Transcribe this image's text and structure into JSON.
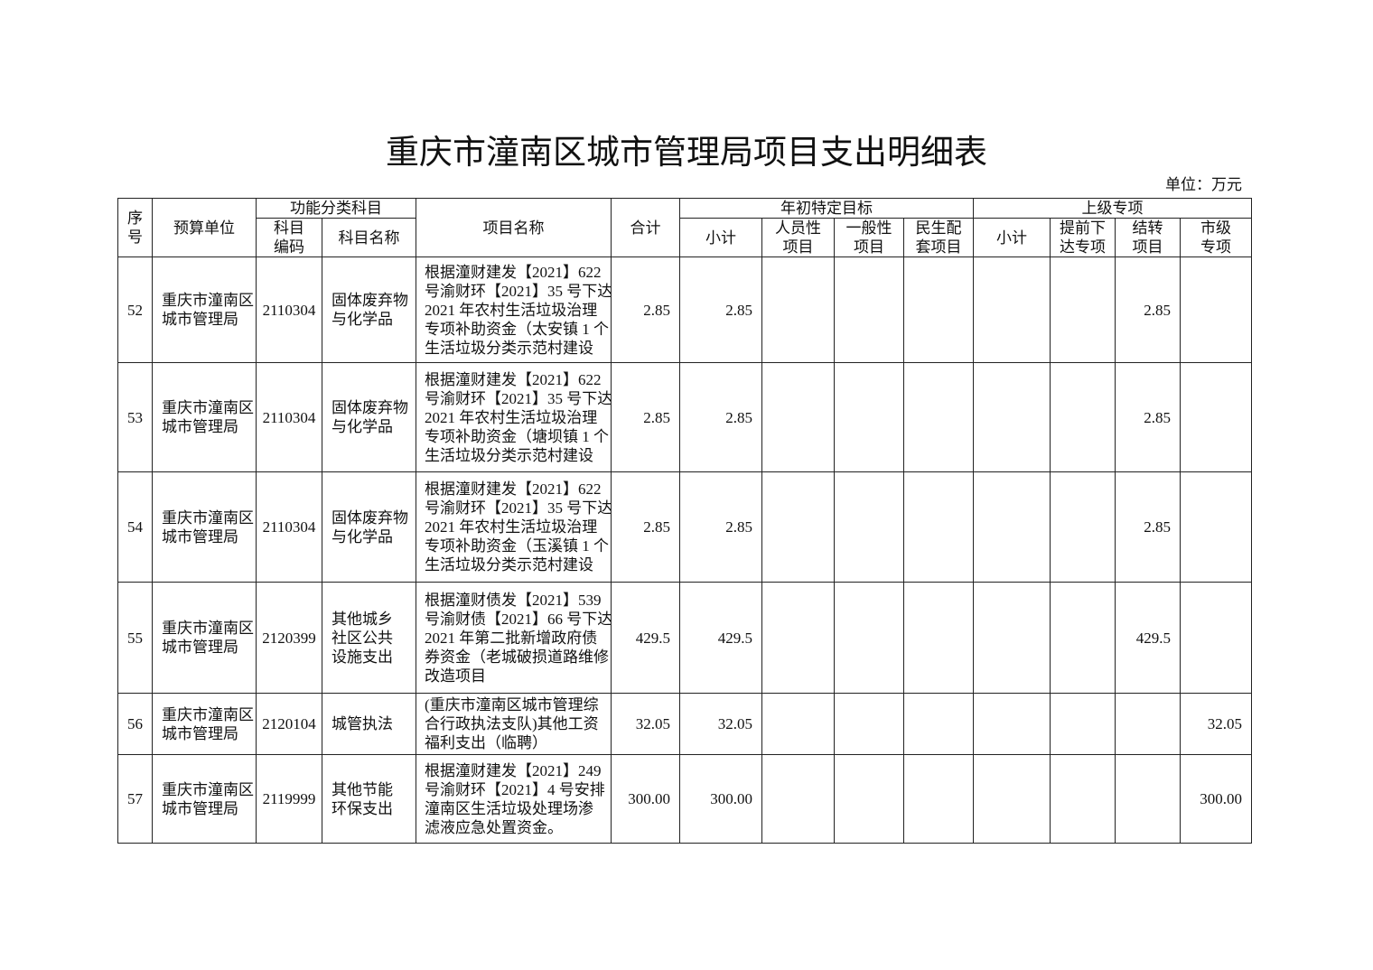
{
  "title": "重庆市潼南区城市管理局项目支出明细表",
  "unit": "单位：万元",
  "header": {
    "seq": [
      "序",
      "号"
    ],
    "unit": "预算单位",
    "func_group": "功能分类科目",
    "code": [
      "科目",
      "编码"
    ],
    "subject": "科目名称",
    "project": "项目名称",
    "total": "合计",
    "target_group": "年初特定目标",
    "target_sub": "小计",
    "personnel": [
      "人员性",
      "项目"
    ],
    "general": [
      "一般性",
      "项目"
    ],
    "livelihood": [
      "民生配",
      "套项目"
    ],
    "upper_group": "上级专项",
    "upper_sub": "小计",
    "advance": [
      "提前下",
      "达专项"
    ],
    "carryover": [
      "结转",
      "项目"
    ],
    "city": [
      "市级",
      "专项"
    ]
  },
  "rows": [
    {
      "seq": "52",
      "unit": [
        "重庆市潼南区",
        "城市管理局"
      ],
      "code": "2110304",
      "subject": [
        "固体废弃物",
        "与化学品"
      ],
      "project": [
        "根据潼财建发【2021】622",
        "号渝财环【2021】35 号下达",
        "2021 年农村生活垃圾治理",
        "专项补助资金（太安镇 1 个",
        "生活垃圾分类示范村建设"
      ],
      "total": "2.85",
      "target_sub": "2.85",
      "personnel": "",
      "general": "",
      "livelihood": "",
      "upper_sub": "",
      "advance": "",
      "carryover": "2.85",
      "city": ""
    },
    {
      "seq": "53",
      "unit": [
        "重庆市潼南区",
        "城市管理局"
      ],
      "code": "2110304",
      "subject": [
        "固体废弃物",
        "与化学品"
      ],
      "project": [
        "根据潼财建发【2021】622",
        "号渝财环【2021】35 号下达",
        "2021 年农村生活垃圾治理",
        "专项补助资金（塘坝镇 1 个",
        "生活垃圾分类示范村建设"
      ],
      "total": "2.85",
      "target_sub": "2.85",
      "personnel": "",
      "general": "",
      "livelihood": "",
      "upper_sub": "",
      "advance": "",
      "carryover": "2.85",
      "city": ""
    },
    {
      "seq": "54",
      "unit": [
        "重庆市潼南区",
        "城市管理局"
      ],
      "code": "2110304",
      "subject": [
        "固体废弃物",
        "与化学品"
      ],
      "project": [
        "根据潼财建发【2021】622",
        "号渝财环【2021】35 号下达",
        "2021 年农村生活垃圾治理",
        "专项补助资金（玉溪镇 1 个",
        "生活垃圾分类示范村建设"
      ],
      "total": "2.85",
      "target_sub": "2.85",
      "personnel": "",
      "general": "",
      "livelihood": "",
      "upper_sub": "",
      "advance": "",
      "carryover": "2.85",
      "city": ""
    },
    {
      "seq": "55",
      "unit": [
        "重庆市潼南区",
        "城市管理局"
      ],
      "code": "2120399",
      "subject": [
        "其他城乡",
        "社区公共",
        "设施支出"
      ],
      "project": [
        "根据潼财债发【2021】539",
        "号渝财债【2021】66 号下达",
        "2021 年第二批新增政府债",
        "券资金（老城破损道路维修",
        "改造项目"
      ],
      "total": "429.5",
      "target_sub": "429.5",
      "personnel": "",
      "general": "",
      "livelihood": "",
      "upper_sub": "",
      "advance": "",
      "carryover": "429.5",
      "city": ""
    },
    {
      "seq": "56",
      "unit": [
        "重庆市潼南区",
        "城市管理局"
      ],
      "code": "2120104",
      "subject": [
        "城管执法"
      ],
      "project": [
        "(重庆市潼南区城市管理综",
        "合行政执法支队)其他工资",
        "福利支出（临聘）"
      ],
      "total": "32.05",
      "target_sub": "32.05",
      "personnel": "",
      "general": "",
      "livelihood": "",
      "upper_sub": "",
      "advance": "",
      "carryover": "",
      "city": "32.05"
    },
    {
      "seq": "57",
      "unit": [
        "重庆市潼南区",
        "城市管理局"
      ],
      "code": "2119999",
      "subject": [
        "其他节能",
        "环保支出"
      ],
      "project": [
        "根据潼财建发【2021】249",
        "号渝财环【2021】4 号安排",
        "潼南区生活垃圾处理场渗",
        "滤液应急处置资金。"
      ],
      "total": "300.00",
      "target_sub": "300.00",
      "personnel": "",
      "general": "",
      "livelihood": "",
      "upper_sub": "",
      "advance": "",
      "carryover": "",
      "city": "300.00"
    }
  ]
}
